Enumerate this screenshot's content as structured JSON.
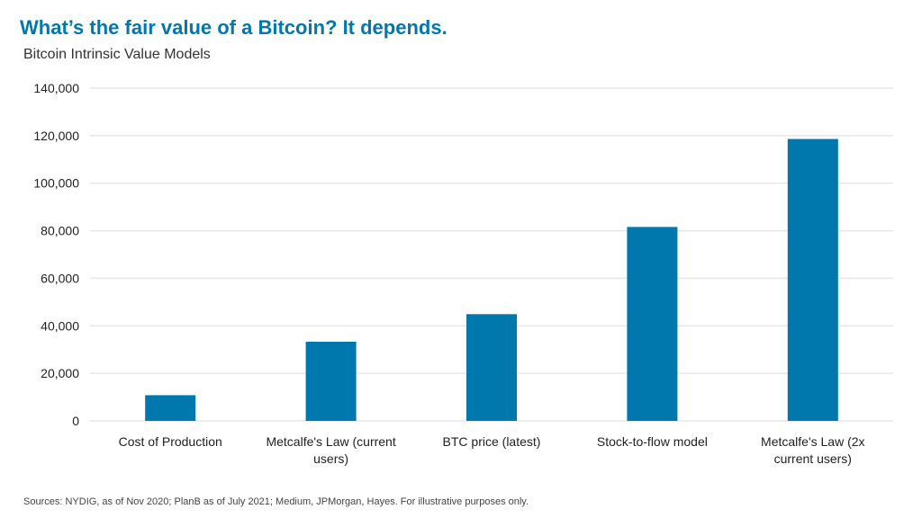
{
  "title": "What’s the fair value of a Bitcoin? It depends.",
  "subtitle": "Bitcoin Intrinsic Value Models",
  "source": "Sources: NYDIG, as of Nov 2020; PlanB as of July 2021; Medium, JPMorgan, Hayes. For illustrative purposes only.",
  "chart_data": {
    "type": "bar",
    "categories": [
      [
        "Cost of Production"
      ],
      [
        "Metcalfe's Law (current",
        "users)"
      ],
      [
        "BTC price (latest)"
      ],
      [
        "Stock-to-flow model"
      ],
      [
        "Metcalfe's Law (2x",
        "current users)"
      ]
    ],
    "values": [
      10800,
      33300,
      44900,
      81600,
      118600
    ],
    "ylim": [
      0,
      140000
    ],
    "yticks": [
      "0",
      "20,000",
      "40,000",
      "60,000",
      "80,000",
      "100,000",
      "120,000",
      "140,000"
    ],
    "grid": true,
    "bar_color": "#0077ad",
    "grid_color": "#e4e8ec"
  }
}
